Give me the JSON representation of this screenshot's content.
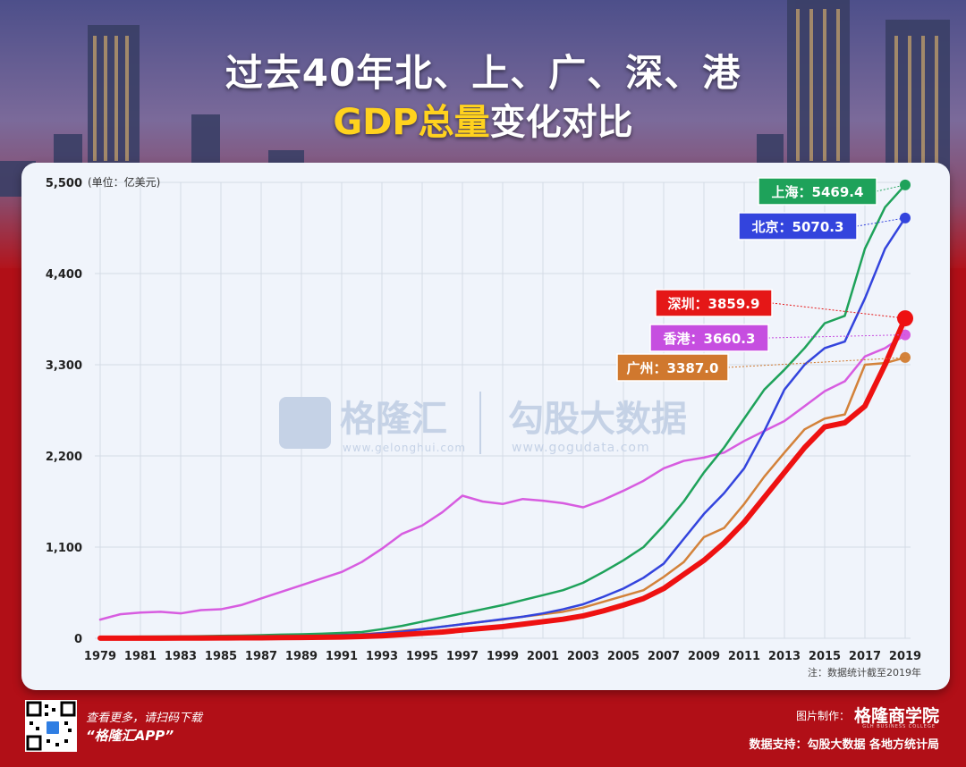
{
  "title": {
    "line1": "过去40年北、上、广、深、港",
    "line2_highlight": "GDP总量",
    "line2_rest": "变化对比"
  },
  "watermark": {
    "brand1": "格隆汇",
    "brand1_url": "www.gelonghui.com",
    "brand2": "勾股大数据",
    "brand2_url": "www.gogudata.com"
  },
  "chart_data": {
    "type": "line",
    "unit_label": "(单位：亿美元)",
    "note": "注：数据统计截至2019年",
    "ylim": [
      0,
      5500
    ],
    "yticks": [
      0,
      1100,
      2200,
      3300,
      4400,
      5500
    ],
    "ytick_labels": [
      "0",
      "1,100",
      "2,200",
      "3,300",
      "4,400",
      "5,500"
    ],
    "x": [
      1979,
      1980,
      1981,
      1982,
      1983,
      1984,
      1985,
      1986,
      1987,
      1988,
      1989,
      1990,
      1991,
      1992,
      1993,
      1994,
      1995,
      1996,
      1997,
      1998,
      1999,
      2000,
      2001,
      2002,
      2003,
      2004,
      2005,
      2006,
      2007,
      2008,
      2009,
      2010,
      2011,
      2012,
      2013,
      2014,
      2015,
      2016,
      2017,
      2018,
      2019
    ],
    "xtick_labels": [
      "1979",
      "1981",
      "1983",
      "1985",
      "1987",
      "1989",
      "1991",
      "1993",
      "1995",
      "1997",
      "1999",
      "2001",
      "2003",
      "2005",
      "2007",
      "2009",
      "2011",
      "2013",
      "2015",
      "2017",
      "2019"
    ],
    "grid": true,
    "series": [
      {
        "name": "上海",
        "color": "#1ea25a",
        "width": 2.5,
        "label": "上海：5469.4",
        "label_color": "#1ea25a",
        "values": [
          17,
          18,
          20,
          21,
          23,
          26,
          30,
          32,
          38,
          45,
          48,
          55,
          65,
          75,
          110,
          150,
          200,
          250,
          300,
          350,
          400,
          460,
          520,
          580,
          670,
          800,
          940,
          1100,
          1360,
          1650,
          2000,
          2300,
          2650,
          3000,
          3240,
          3500,
          3800,
          3890,
          4700,
          5200,
          5469.4
        ]
      },
      {
        "name": "北京",
        "color": "#3344dd",
        "width": 2.5,
        "label": "北京：5070.3",
        "label_color": "#3344dd",
        "values": [
          12,
          13,
          14,
          15,
          16,
          18,
          20,
          22,
          25,
          30,
          32,
          35,
          40,
          45,
          62,
          80,
          110,
          140,
          170,
          200,
          230,
          260,
          300,
          350,
          410,
          500,
          600,
          730,
          900,
          1200,
          1500,
          1750,
          2050,
          2500,
          3000,
          3300,
          3500,
          3580,
          4100,
          4700,
          5070.3
        ]
      },
      {
        "name": "深圳",
        "color": "#ee1111",
        "width": 6,
        "label": "深圳：3859.9",
        "label_color": "#e51717",
        "values": [
          1,
          1,
          2,
          2,
          3,
          3,
          4,
          5,
          6,
          8,
          9,
          12,
          15,
          22,
          30,
          45,
          60,
          75,
          100,
          120,
          140,
          170,
          200,
          230,
          270,
          330,
          400,
          480,
          600,
          770,
          940,
          1150,
          1400,
          1700,
          2000,
          2300,
          2550,
          2600,
          2800,
          3300,
          3859.9
        ]
      },
      {
        "name": "香港",
        "color": "#d75ce0",
        "width": 2.5,
        "label": "香港：3660.3",
        "label_color": "#c64ee0",
        "values": [
          225,
          290,
          310,
          320,
          300,
          340,
          350,
          400,
          480,
          560,
          640,
          720,
          800,
          920,
          1080,
          1260,
          1360,
          1520,
          1720,
          1650,
          1620,
          1680,
          1660,
          1630,
          1580,
          1670,
          1780,
          1900,
          2050,
          2140,
          2180,
          2240,
          2380,
          2500,
          2620,
          2800,
          2980,
          3100,
          3400,
          3500,
          3660.3
        ]
      },
      {
        "name": "广州",
        "color": "#d3823a",
        "width": 2.5,
        "label": "广州：3387.0",
        "label_color": "#d0782e",
        "values": [
          5,
          6,
          7,
          8,
          9,
          10,
          12,
          14,
          17,
          20,
          24,
          30,
          38,
          50,
          65,
          90,
          110,
          140,
          170,
          200,
          225,
          260,
          290,
          320,
          370,
          440,
          510,
          580,
          740,
          920,
          1220,
          1330,
          1620,
          1950,
          2240,
          2520,
          2650,
          2700,
          3300,
          3320,
          3387.0
        ]
      }
    ]
  },
  "footer": {
    "promo1": "查看更多，请扫码下载",
    "promo2": "“格隆汇APP”",
    "credit": "图片制作：",
    "brand": "格隆商学院",
    "brand_sub": "GLH BUSINESS COLLEGE",
    "source": "数据支持：勾股大数据  各地方统计局"
  },
  "colors": {
    "background": "#b10f17",
    "card": "#f0f4fb",
    "highlight": "#ffd21e"
  }
}
